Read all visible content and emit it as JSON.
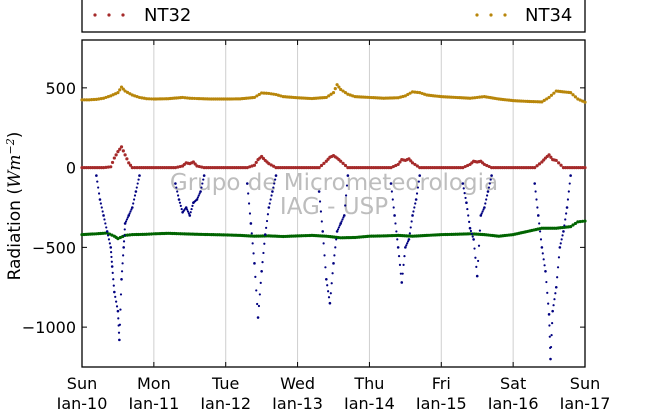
{
  "chart_data": {
    "type": "scatter",
    "ylabel": "Radiation (Wm⁻²)",
    "ylabel_main": "Radiation (",
    "ylabel_unit_W": "W",
    "ylabel_unit_m": "m",
    "ylabel_exponent": "−2",
    "ylabel_close": ")",
    "ylim": [
      -1250,
      800
    ],
    "yticks": [
      500,
      0,
      -500,
      -1000
    ],
    "ytick_labels": [
      "500",
      "0",
      "−500",
      "−1000"
    ],
    "xlim": [
      0,
      7
    ],
    "xtick_labels": [
      {
        "day": "Sun",
        "date": "Jan-10"
      },
      {
        "day": "Mon",
        "date": "Jan-11"
      },
      {
        "day": "Tue",
        "date": "Jan-12"
      },
      {
        "day": "Wed",
        "date": "Jan-13"
      },
      {
        "day": "Thu",
        "date": "Jan-14"
      },
      {
        "day": "Fri",
        "date": "Jan-15"
      },
      {
        "day": "Sat",
        "date": "Jan-16"
      },
      {
        "day": "Sun",
        "date": "Jan-17"
      }
    ],
    "grid": "vertical",
    "legend_placement": "top, outside plot",
    "legend": [
      {
        "name": "NT32",
        "color": "#a52a2a"
      },
      {
        "name": "NT34",
        "color": "#b8860b"
      }
    ],
    "watermark": [
      "Grupo de Micrometeorologia",
      "IAG - USP"
    ],
    "series": [
      {
        "color": "#b8860b",
        "x": [
          0,
          0.1,
          0.2,
          0.3,
          0.4,
          0.5,
          0.55,
          0.6,
          0.7,
          0.8,
          0.9,
          1.0,
          1.2,
          1.4,
          1.5,
          1.6,
          1.8,
          2.0,
          2.2,
          2.4,
          2.5,
          2.6,
          2.7,
          2.8,
          3.0,
          3.2,
          3.4,
          3.5,
          3.55,
          3.6,
          3.7,
          3.8,
          4.0,
          4.2,
          4.4,
          4.5,
          4.6,
          4.7,
          4.8,
          5.0,
          5.2,
          5.4,
          5.5,
          5.6,
          5.8,
          6.0,
          6.2,
          6.4,
          6.5,
          6.6,
          6.8,
          6.9,
          7.0
        ],
        "y": [
          425,
          425,
          428,
          435,
          450,
          470,
          505,
          480,
          455,
          440,
          432,
          430,
          432,
          440,
          435,
          433,
          430,
          430,
          431,
          440,
          468,
          465,
          458,
          445,
          438,
          433,
          440,
          470,
          520,
          490,
          460,
          445,
          440,
          435,
          438,
          450,
          475,
          470,
          455,
          445,
          440,
          435,
          440,
          445,
          430,
          420,
          415,
          412,
          440,
          480,
          470,
          430,
          410
        ]
      },
      {
        "color": "#a52a2a",
        "x": [
          0,
          0.3,
          0.4,
          0.45,
          0.5,
          0.55,
          0.6,
          0.65,
          0.7,
          0.8,
          1.0,
          1.3,
          1.4,
          1.45,
          1.5,
          1.55,
          1.6,
          1.7,
          2.0,
          2.3,
          2.4,
          2.45,
          2.5,
          2.55,
          2.6,
          2.7,
          3.0,
          3.3,
          3.4,
          3.45,
          3.5,
          3.55,
          3.6,
          3.7,
          4.0,
          4.3,
          4.4,
          4.45,
          4.5,
          4.55,
          4.6,
          4.7,
          5.0,
          5.3,
          5.4,
          5.45,
          5.5,
          5.55,
          5.6,
          5.7,
          6.0,
          6.3,
          6.4,
          6.45,
          6.5,
          6.55,
          6.6,
          6.7,
          7.0
        ],
        "y": [
          0,
          0,
          5,
          60,
          100,
          130,
          80,
          30,
          0,
          0,
          0,
          0,
          10,
          30,
          25,
          35,
          10,
          0,
          0,
          0,
          15,
          50,
          70,
          45,
          25,
          0,
          0,
          0,
          40,
          65,
          75,
          60,
          40,
          0,
          0,
          0,
          20,
          50,
          45,
          55,
          30,
          0,
          0,
          0,
          20,
          40,
          35,
          40,
          20,
          0,
          0,
          0,
          35,
          60,
          80,
          50,
          45,
          0,
          0
        ]
      },
      {
        "color": "#006400",
        "x": [
          0,
          0.2,
          0.35,
          0.45,
          0.5,
          0.6,
          0.7,
          0.9,
          1.0,
          1.2,
          1.4,
          1.6,
          1.8,
          2.0,
          2.2,
          2.4,
          2.6,
          2.8,
          3.0,
          3.2,
          3.4,
          3.6,
          3.8,
          4.0,
          4.2,
          4.4,
          4.6,
          4.8,
          5.0,
          5.2,
          5.4,
          5.6,
          5.8,
          6.0,
          6.2,
          6.4,
          6.6,
          6.8,
          6.9,
          7.0
        ],
        "y": [
          -420,
          -415,
          -410,
          -430,
          -445,
          -425,
          -420,
          -418,
          -415,
          -412,
          -415,
          -418,
          -420,
          -422,
          -425,
          -430,
          -428,
          -432,
          -428,
          -425,
          -430,
          -440,
          -438,
          -430,
          -428,
          -425,
          -430,
          -425,
          -420,
          -418,
          -415,
          -420,
          -430,
          -420,
          -400,
          -380,
          -380,
          -370,
          -340,
          -335
        ]
      },
      {
        "color": "#000080",
        "x": [
          0.2,
          0.25,
          0.3,
          0.35,
          0.4,
          0.42,
          0.45,
          0.5,
          0.52,
          0.55,
          0.58,
          0.6,
          0.65,
          0.7,
          0.75,
          0.8,
          1.3,
          1.35,
          1.4,
          1.45,
          1.5,
          1.55,
          1.6,
          1.65,
          1.7,
          2.3,
          2.35,
          2.4,
          2.45,
          2.5,
          2.55,
          2.6,
          2.65,
          2.7,
          3.3,
          3.35,
          3.4,
          3.45,
          3.5,
          3.55,
          3.6,
          3.65,
          3.7,
          4.3,
          4.35,
          4.4,
          4.45,
          4.5,
          4.55,
          4.6,
          4.65,
          4.7,
          5.3,
          5.35,
          5.4,
          5.45,
          5.5,
          5.55,
          5.6,
          5.65,
          5.7,
          6.3,
          6.35,
          6.4,
          6.45,
          6.5,
          6.52,
          6.55,
          6.6,
          6.65,
          6.7,
          6.75,
          6.8
        ],
        "y": [
          -50,
          -200,
          -300,
          -400,
          -500,
          -620,
          -780,
          -900,
          -1080,
          -700,
          -500,
          -350,
          -300,
          -250,
          -150,
          -50,
          -100,
          -200,
          -280,
          -250,
          -300,
          -220,
          -200,
          -150,
          -50,
          -100,
          -350,
          -600,
          -940,
          -650,
          -420,
          -250,
          -150,
          -50,
          -150,
          -400,
          -700,
          -850,
          -600,
          -400,
          -350,
          -300,
          -50,
          -100,
          -300,
          -500,
          -720,
          -500,
          -450,
          -300,
          -200,
          -50,
          -100,
          -220,
          -380,
          -450,
          -680,
          -300,
          -250,
          -150,
          -50,
          -100,
          -300,
          -500,
          -650,
          -920,
          -1200,
          -900,
          -750,
          -500,
          -400,
          -250,
          -50
        ]
      }
    ]
  }
}
